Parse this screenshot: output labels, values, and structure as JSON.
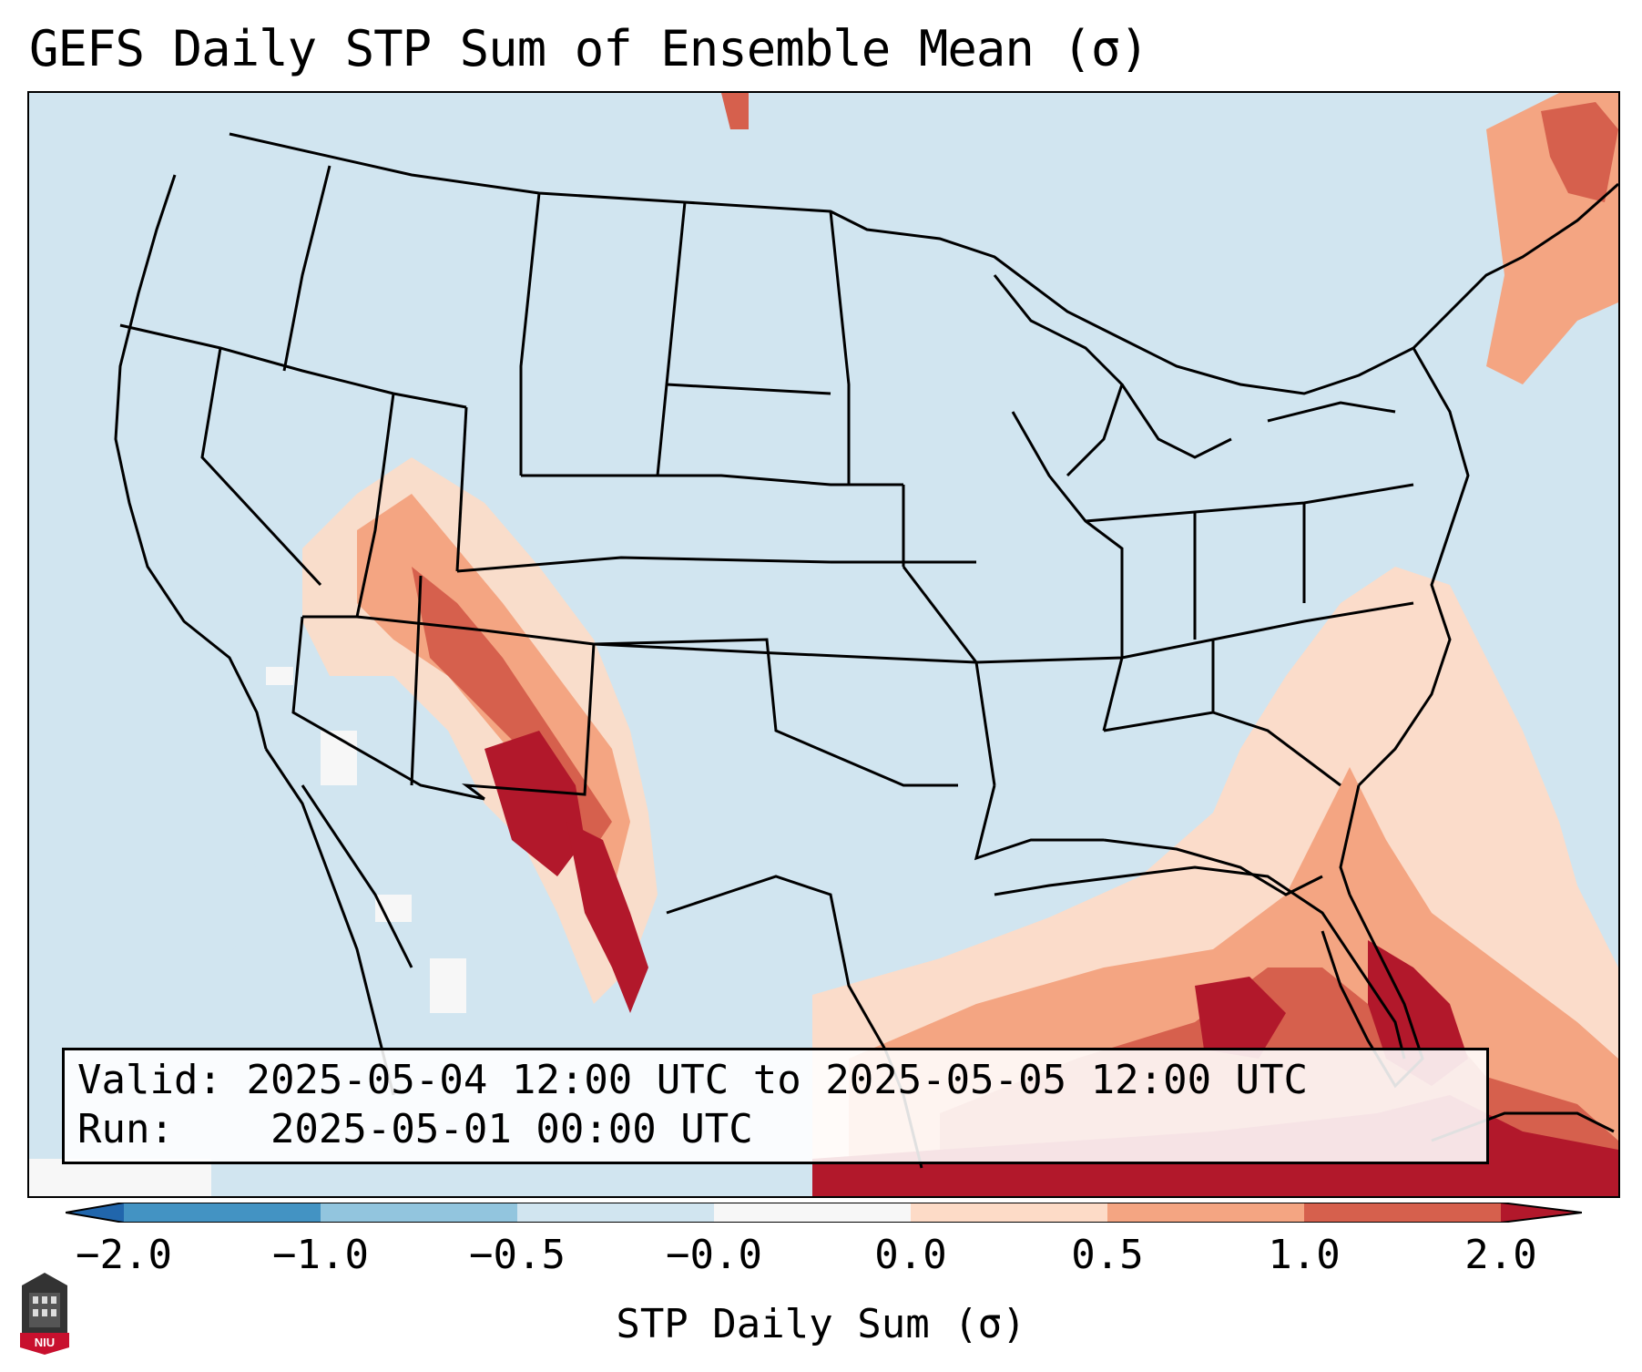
{
  "title": "GEFS Daily STP Sum of Ensemble Mean (σ)",
  "info_box": {
    "valid_label": "Valid:",
    "valid_value": "2025-05-04 12:00 UTC to 2025-05-05 12:00 UTC",
    "run_label": "Run:",
    "run_value": "2025-05-01 00:00 UTC"
  },
  "colorbar": {
    "label": "STP Daily Sum (σ)",
    "ticks": [
      "−2.0",
      "−1.0",
      "−0.5",
      "−0.0",
      "0.0",
      "0.5",
      "1.0",
      "2.0"
    ],
    "colors": [
      "#2166ac",
      "#4393c3",
      "#92c5de",
      "#d1e5f0",
      "#f7f7f7",
      "#fddbc7",
      "#f4a582",
      "#d6604d",
      "#b2182b"
    ]
  },
  "map": {
    "background_color": "#d1e5f0",
    "border_color": "#000000"
  },
  "logo": {
    "text": "NIU"
  }
}
